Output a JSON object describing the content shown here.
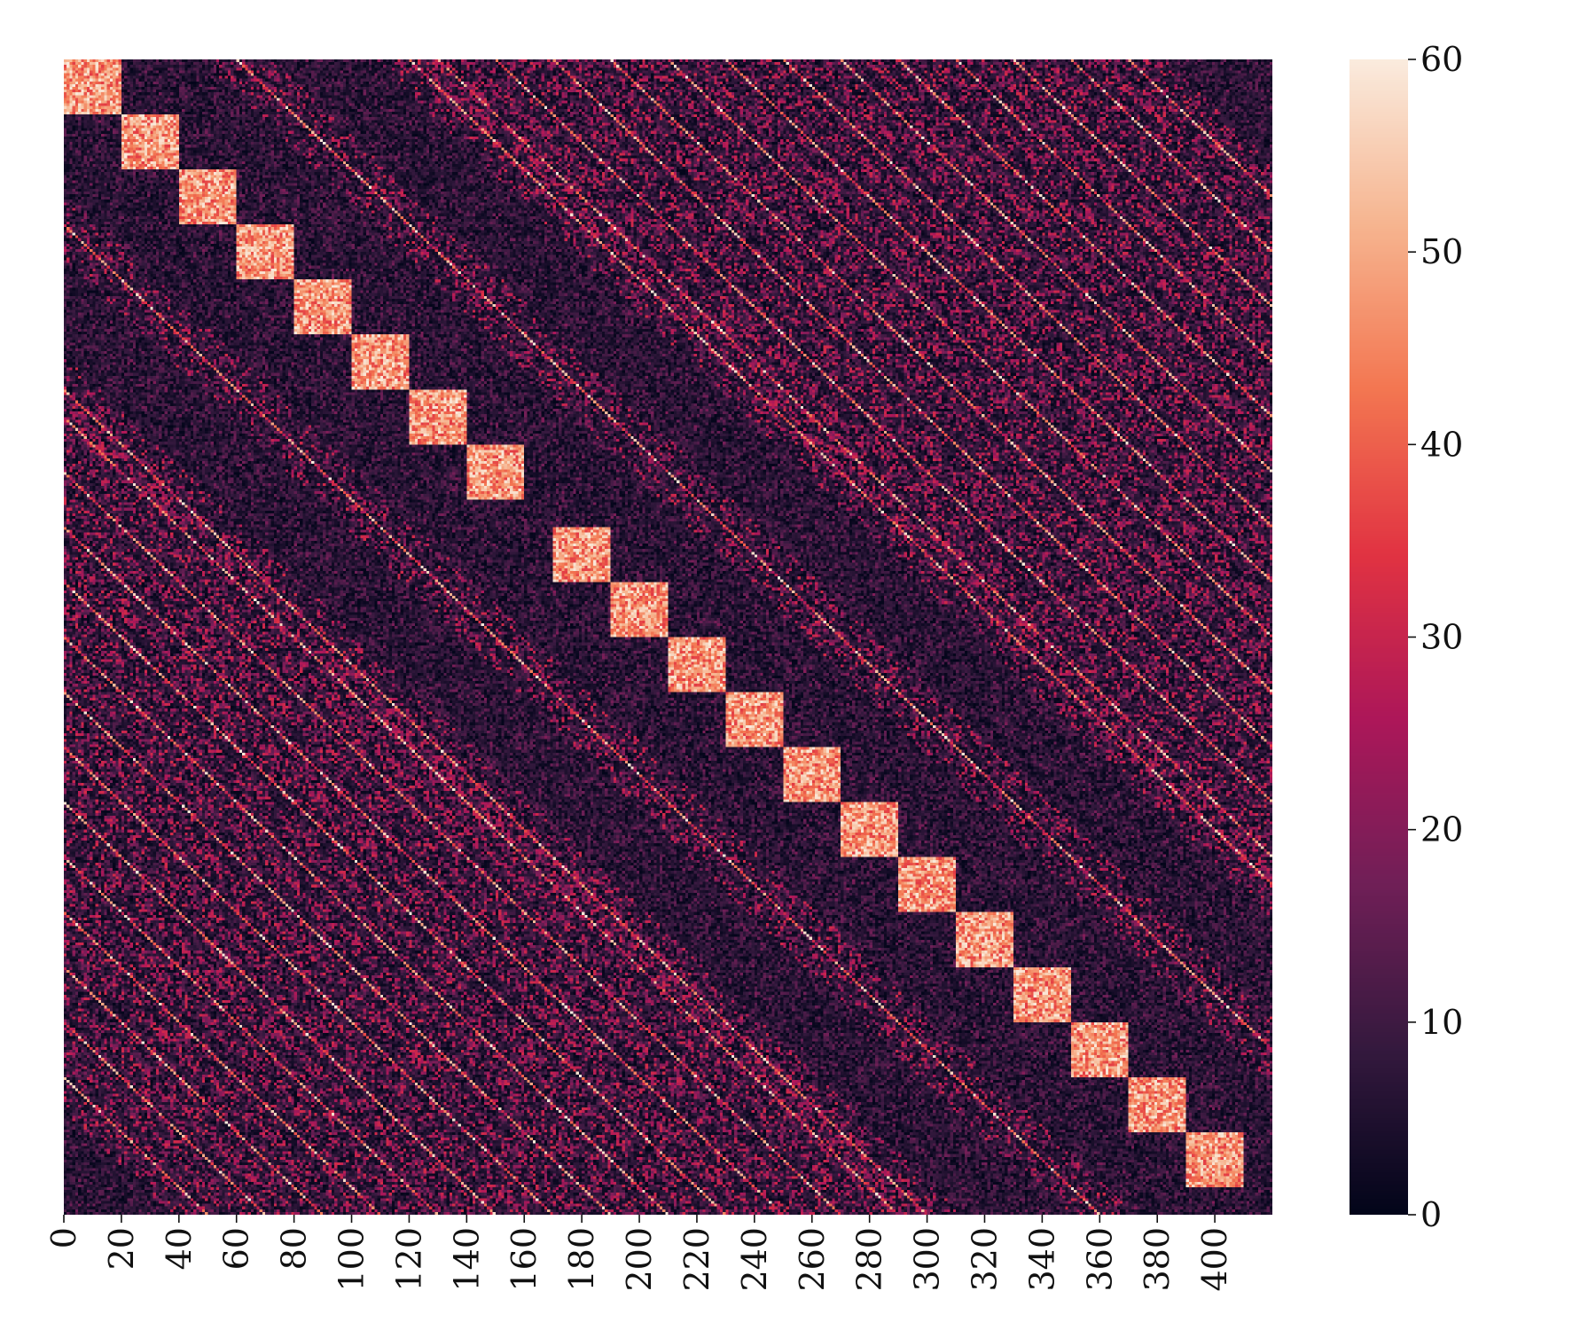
{
  "chart_data": {
    "type": "heatmap",
    "title": "",
    "xlabel": "",
    "ylabel": "",
    "n": 420,
    "x_range": [
      0,
      420
    ],
    "x_ticks": [
      0,
      20,
      40,
      60,
      80,
      100,
      120,
      140,
      160,
      180,
      200,
      220,
      240,
      260,
      280,
      300,
      320,
      340,
      360,
      380,
      400
    ],
    "x_tick_labels": [
      "0",
      "20",
      "40",
      "60",
      "80",
      "100",
      "120",
      "140",
      "160",
      "180",
      "200",
      "220",
      "240",
      "260",
      "280",
      "300",
      "320",
      "340",
      "360",
      "380",
      "400"
    ],
    "x_tick_rotation": "vertical",
    "y_ticks": [],
    "colorbar": {
      "vmin": 0,
      "vmax": 60,
      "ticks": [
        0,
        10,
        20,
        30,
        40,
        50,
        60
      ],
      "tick_labels": [
        "0",
        "10",
        "20",
        "30",
        "40",
        "50",
        "60"
      ],
      "colormap": "rocket",
      "color_stops": [
        "#03051a",
        "#35193e",
        "#701f57",
        "#ad1759",
        "#e13342",
        "#f37651",
        "#f6b48f",
        "#faebdd"
      ]
    },
    "diagonal_blocks": {
      "block_size": 20,
      "starts": [
        0,
        20,
        40,
        60,
        80,
        100,
        120,
        140,
        170,
        190,
        210,
        230,
        250,
        270,
        290,
        310,
        330,
        350,
        370,
        390
      ],
      "value_range": [
        35,
        60
      ]
    },
    "background_value_range": [
      0,
      20
    ],
    "diagonal_stripes": {
      "offsets": [
        60,
        120,
        130,
        150,
        170,
        190,
        210,
        230,
        250,
        270,
        290,
        310,
        330,
        350,
        370,
        -60,
        -120,
        -130,
        -150,
        -170,
        -190,
        -210,
        -230,
        -250,
        -270,
        -290,
        -310,
        -330,
        -350,
        -370
      ],
      "value_range": [
        25,
        60
      ]
    }
  }
}
